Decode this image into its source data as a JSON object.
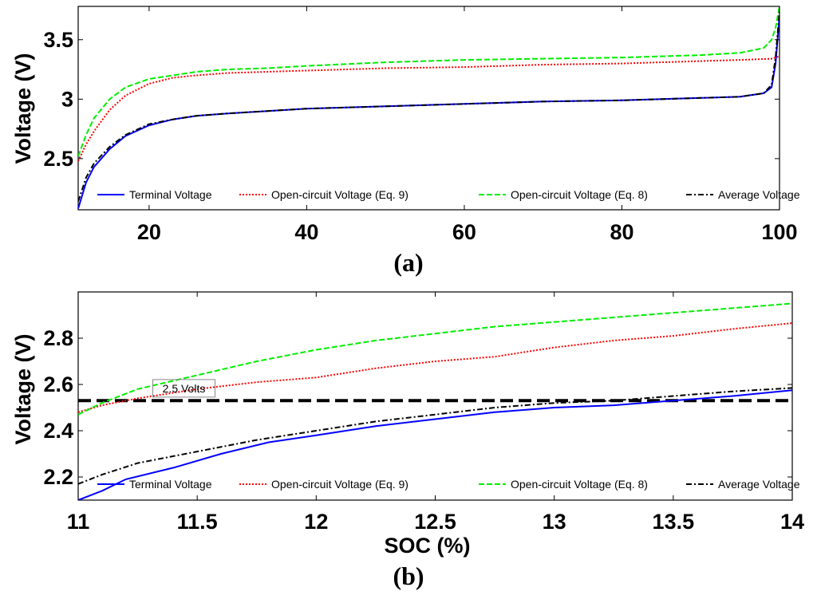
{
  "chart_data": [
    {
      "type": "line",
      "panel_label": "(a)",
      "xlabel": "",
      "ylabel": "Voltage (V)",
      "xlim": [
        11,
        100
      ],
      "ylim": [
        2.07,
        3.78
      ],
      "xticks": [
        20,
        40,
        60,
        80,
        100
      ],
      "yticks": [
        2.5,
        3,
        3.5
      ],
      "ytick_labels": [
        "2.5",
        "3",
        "3.5"
      ],
      "grid": false,
      "legend_position": "bottom",
      "series": [
        {
          "name": "Terminal Voltage",
          "color": "#0000ff",
          "style": "solid",
          "x": [
            11,
            12,
            13,
            15,
            17,
            20,
            23,
            26,
            30,
            35,
            40,
            50,
            60,
            70,
            80,
            90,
            95,
            98,
            99,
            99.5,
            100
          ],
          "y": [
            2.08,
            2.3,
            2.43,
            2.58,
            2.69,
            2.78,
            2.83,
            2.86,
            2.88,
            2.9,
            2.92,
            2.94,
            2.96,
            2.98,
            2.99,
            3.01,
            3.02,
            3.05,
            3.1,
            3.3,
            3.7
          ]
        },
        {
          "name": "Open-circuit Voltage (Eq. 9)",
          "color": "#ff0000",
          "style": "dotted",
          "x": [
            11,
            12,
            13,
            15,
            17,
            20,
            23,
            26,
            30,
            35,
            40,
            50,
            60,
            70,
            80,
            90,
            95,
            99,
            100
          ],
          "y": [
            2.48,
            2.62,
            2.73,
            2.91,
            3.03,
            3.13,
            3.18,
            3.2,
            3.22,
            3.23,
            3.24,
            3.26,
            3.27,
            3.29,
            3.3,
            3.32,
            3.33,
            3.34,
            3.36
          ]
        },
        {
          "name": "Open-circuit Voltage (Eq. 8)",
          "color": "#00ee00",
          "style": "dashed",
          "x": [
            11,
            12,
            13,
            15,
            17,
            20,
            23,
            26,
            30,
            35,
            40,
            50,
            60,
            70,
            80,
            90,
            95,
            98,
            99,
            99.5,
            100
          ],
          "y": [
            2.52,
            2.7,
            2.84,
            3.0,
            3.1,
            3.17,
            3.2,
            3.23,
            3.25,
            3.26,
            3.28,
            3.31,
            3.33,
            3.34,
            3.35,
            3.37,
            3.39,
            3.43,
            3.5,
            3.6,
            3.78
          ]
        },
        {
          "name": "Average Voltage",
          "color": "#000000",
          "style": "dashdot",
          "x": [
            11,
            12,
            13,
            15,
            17,
            20,
            23,
            26,
            30,
            35,
            40,
            50,
            60,
            70,
            80,
            90,
            95,
            98,
            99,
            99.5,
            100
          ],
          "y": [
            2.14,
            2.34,
            2.46,
            2.6,
            2.7,
            2.79,
            2.83,
            2.86,
            2.88,
            2.9,
            2.92,
            2.94,
            2.96,
            2.98,
            2.99,
            3.01,
            3.02,
            3.05,
            3.12,
            3.35,
            3.74
          ]
        }
      ]
    },
    {
      "type": "line",
      "panel_label": "(b)",
      "xlabel": "SOC (%)",
      "ylabel": "Voltage (V)",
      "xlim": [
        11,
        14
      ],
      "ylim": [
        2.1,
        3.0
      ],
      "xticks": [
        11,
        11.5,
        12,
        12.5,
        13,
        13.5,
        14
      ],
      "yticks": [
        2.2,
        2.4,
        2.6,
        2.8
      ],
      "ytick_labels": [
        "2.2",
        "2.4",
        "2.6",
        "2.8"
      ],
      "grid": false,
      "legend_position": "bottom",
      "annotations": [
        {
          "text": "2.5 Volts",
          "x": 11.3,
          "y": 2.535
        }
      ],
      "reference_line": {
        "y": 2.53,
        "color": "#000000",
        "style": "dashed"
      },
      "series": [
        {
          "name": "Terminal Voltage",
          "color": "#0000ff",
          "style": "solid",
          "x": [
            11,
            11.1,
            11.2,
            11.4,
            11.6,
            11.8,
            12,
            12.25,
            12.5,
            12.75,
            13,
            13.25,
            13.5,
            13.75,
            14
          ],
          "y": [
            2.1,
            2.14,
            2.19,
            2.24,
            2.3,
            2.35,
            2.38,
            2.42,
            2.45,
            2.48,
            2.5,
            2.51,
            2.53,
            2.55,
            2.575
          ]
        },
        {
          "name": "Open-circuit Voltage (Eq. 9)",
          "color": "#ff0000",
          "style": "dotted",
          "x": [
            11,
            11.1,
            11.25,
            11.5,
            11.75,
            12,
            12.25,
            12.5,
            12.75,
            13,
            13.25,
            13.5,
            13.75,
            14
          ],
          "y": [
            2.48,
            2.51,
            2.54,
            2.58,
            2.61,
            2.63,
            2.67,
            2.7,
            2.72,
            2.76,
            2.79,
            2.81,
            2.84,
            2.865
          ]
        },
        {
          "name": "Open-circuit Voltage (Eq. 8)",
          "color": "#00ee00",
          "style": "dashed",
          "x": [
            11,
            11.1,
            11.25,
            11.5,
            11.75,
            12,
            12.25,
            12.5,
            12.75,
            13,
            13.25,
            13.5,
            13.75,
            14
          ],
          "y": [
            2.47,
            2.52,
            2.58,
            2.64,
            2.7,
            2.75,
            2.79,
            2.82,
            2.85,
            2.87,
            2.89,
            2.91,
            2.93,
            2.95
          ]
        },
        {
          "name": "Average Voltage",
          "color": "#000000",
          "style": "dashdot",
          "x": [
            11,
            11.1,
            11.25,
            11.5,
            11.75,
            12,
            12.25,
            12.5,
            12.75,
            13,
            13.25,
            13.5,
            13.75,
            14
          ],
          "y": [
            2.17,
            2.21,
            2.26,
            2.31,
            2.36,
            2.4,
            2.44,
            2.47,
            2.5,
            2.52,
            2.53,
            2.55,
            2.57,
            2.585
          ]
        }
      ]
    }
  ]
}
